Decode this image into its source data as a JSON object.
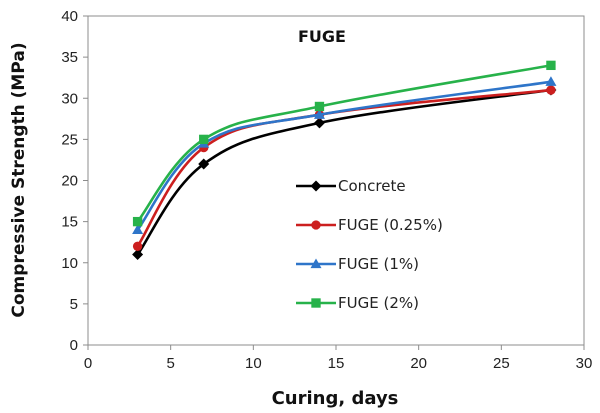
{
  "chart_data": {
    "type": "line",
    "title": "FUGE",
    "xlabel": "Curing, days",
    "ylabel": "Compressive Strength (MPa)",
    "xlim": [
      0,
      30
    ],
    "ylim": [
      0,
      40
    ],
    "x_ticks": [
      0,
      5,
      10,
      15,
      20,
      25,
      30
    ],
    "y_ticks": [
      0,
      5,
      10,
      15,
      20,
      25,
      30,
      35,
      40
    ],
    "grid": false,
    "smooth": true,
    "legend_position": "center-right",
    "x": [
      3,
      7,
      14,
      28
    ],
    "series": [
      {
        "name": "Concrete",
        "values": [
          11,
          22,
          27,
          31
        ],
        "color": "#000000",
        "marker": "diamond"
      },
      {
        "name": "FUGE (0.25%)",
        "values": [
          12,
          24,
          28,
          31
        ],
        "color": "#cc1f1f",
        "marker": "circle"
      },
      {
        "name": "FUGE (1%)",
        "values": [
          14,
          24.5,
          28,
          32
        ],
        "color": "#2e75c9",
        "marker": "triangle"
      },
      {
        "name": "FUGE (2%)",
        "values": [
          15,
          25,
          29,
          34
        ],
        "color": "#27b24a",
        "marker": "square"
      }
    ]
  }
}
